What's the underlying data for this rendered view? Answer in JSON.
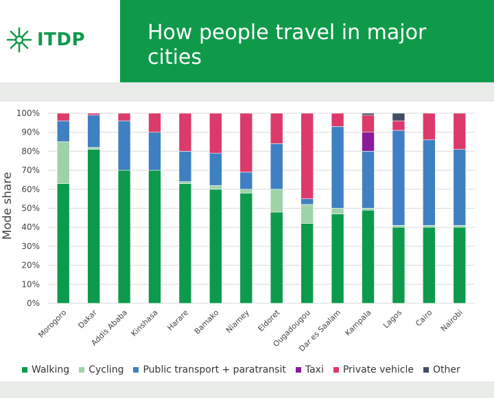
{
  "header": {
    "logo_text": "ITDP",
    "title": "How people travel in major cities"
  },
  "colors": {
    "brand_green": "#0f9a4a",
    "walking": "#0d9a4c",
    "cycling": "#9ed3a8",
    "public_transport": "#3e80c1",
    "taxi": "#8a1a9a",
    "private_vehicle": "#dc3a6b",
    "other": "#424c63"
  },
  "chart_data": {
    "type": "bar",
    "stacked": true,
    "ylabel": "Mode share",
    "xlabel": "",
    "ylim": [
      0,
      100
    ],
    "yticks": [
      "0%",
      "10%",
      "20%",
      "30%",
      "40%",
      "50%",
      "60%",
      "70%",
      "80%",
      "90%",
      "100%"
    ],
    "categories": [
      "Morogoro",
      "Dakar",
      "Addis Ababa",
      "Kinshasa",
      "Harare",
      "Bamako",
      "Niamey",
      "Eldoret",
      "Ougadougou",
      "Dar es Saalam",
      "Kampala",
      "Lagos",
      "Cairo",
      "Nairobi"
    ],
    "series": [
      {
        "name": "Walking",
        "values": [
          63,
          81,
          70,
          70,
          63,
          60,
          58,
          48,
          42,
          47,
          49,
          40,
          40,
          40
        ]
      },
      {
        "name": "Cycling",
        "values": [
          22,
          1,
          0,
          0,
          1,
          2,
          2,
          12,
          10,
          3,
          1,
          1,
          1,
          1
        ]
      },
      {
        "name": "Public transport + paratransit",
        "values": [
          11,
          17,
          26,
          20,
          16,
          17,
          9,
          24,
          3,
          43,
          30,
          50,
          45,
          40
        ]
      },
      {
        "name": "Taxi",
        "values": [
          0,
          0,
          0,
          0,
          0,
          0,
          0,
          0,
          0,
          0,
          10,
          0,
          0,
          0
        ]
      },
      {
        "name": "Private vehicle",
        "values": [
          4,
          1,
          4,
          10,
          20,
          21,
          31,
          16,
          45,
          7,
          9,
          5,
          14,
          19
        ]
      },
      {
        "name": "Other",
        "values": [
          0,
          0,
          0,
          0,
          0,
          0,
          0,
          0,
          0,
          0,
          1,
          4,
          0,
          0
        ]
      }
    ],
    "legend": {
      "position": "bottom",
      "entries": [
        "Walking",
        "Cycling",
        "Public transport + paratransit",
        "Taxi",
        "Private vehicle",
        "Other"
      ]
    },
    "grid": true
  }
}
